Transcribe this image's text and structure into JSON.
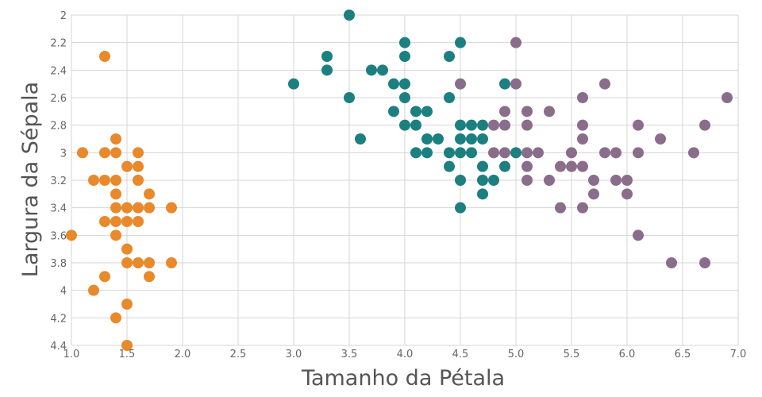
{
  "chart_data": {
    "type": "scatter",
    "xlabel": "Tamanho da Pétala",
    "ylabel": "Largura da Sépala",
    "xlim": [
      1.0,
      7.0
    ],
    "ylim": [
      2,
      4.4
    ],
    "y_reversed": true,
    "x_ticks": [
      "1.0",
      "1.5",
      "2.0",
      "2.5",
      "3.0",
      "3.5",
      "4.0",
      "4.5",
      "5.0",
      "5.5",
      "6.0",
      "6.5",
      "7.0"
    ],
    "y_ticks": [
      "2",
      "2.2",
      "2.4",
      "2.6",
      "2.8",
      "3",
      "3.2",
      "3.4",
      "3.6",
      "3.8",
      "4",
      "4.2",
      "4.4"
    ],
    "grid": true,
    "series": [
      {
        "color": "#e8892b",
        "points": [
          [
            1.3,
            2.3
          ],
          [
            1.4,
            2.9
          ],
          [
            1.1,
            3.0
          ],
          [
            1.3,
            3.0
          ],
          [
            1.4,
            3.0
          ],
          [
            1.6,
            3.0
          ],
          [
            1.5,
            3.1
          ],
          [
            1.6,
            3.1
          ],
          [
            1.2,
            3.2
          ],
          [
            1.3,
            3.2
          ],
          [
            1.4,
            3.2
          ],
          [
            1.6,
            3.2
          ],
          [
            1.4,
            3.3
          ],
          [
            1.7,
            3.3
          ],
          [
            1.4,
            3.4
          ],
          [
            1.5,
            3.4
          ],
          [
            1.6,
            3.4
          ],
          [
            1.7,
            3.4
          ],
          [
            1.9,
            3.4
          ],
          [
            1.3,
            3.5
          ],
          [
            1.4,
            3.5
          ],
          [
            1.5,
            3.5
          ],
          [
            1.6,
            3.5
          ],
          [
            1.0,
            3.6
          ],
          [
            1.4,
            3.6
          ],
          [
            1.5,
            3.7
          ],
          [
            1.5,
            3.8
          ],
          [
            1.6,
            3.8
          ],
          [
            1.7,
            3.8
          ],
          [
            1.9,
            3.8
          ],
          [
            1.3,
            3.9
          ],
          [
            1.7,
            3.9
          ],
          [
            1.2,
            4.0
          ],
          [
            1.5,
            4.1
          ],
          [
            1.4,
            4.2
          ],
          [
            1.5,
            4.4
          ]
        ]
      },
      {
        "color": "#1c7f80",
        "points": [
          [
            3.5,
            2.0
          ],
          [
            4.0,
            2.2
          ],
          [
            4.5,
            2.2
          ],
          [
            3.3,
            2.3
          ],
          [
            4.0,
            2.3
          ],
          [
            4.4,
            2.3
          ],
          [
            3.3,
            2.4
          ],
          [
            3.7,
            2.4
          ],
          [
            3.8,
            2.4
          ],
          [
            3.0,
            2.5
          ],
          [
            3.9,
            2.5
          ],
          [
            4.0,
            2.5
          ],
          [
            4.9,
            2.5
          ],
          [
            3.5,
            2.6
          ],
          [
            4.0,
            2.6
          ],
          [
            4.4,
            2.6
          ],
          [
            3.9,
            2.7
          ],
          [
            4.1,
            2.7
          ],
          [
            4.2,
            2.7
          ],
          [
            4.0,
            2.8
          ],
          [
            4.1,
            2.8
          ],
          [
            4.5,
            2.8
          ],
          [
            4.6,
            2.8
          ],
          [
            4.7,
            2.8
          ],
          [
            3.6,
            2.9
          ],
          [
            4.2,
            2.9
          ],
          [
            4.3,
            2.9
          ],
          [
            4.5,
            2.9
          ],
          [
            4.6,
            2.9
          ],
          [
            4.7,
            2.9
          ],
          [
            4.1,
            3.0
          ],
          [
            4.2,
            3.0
          ],
          [
            4.4,
            3.0
          ],
          [
            4.5,
            3.0
          ],
          [
            4.6,
            3.0
          ],
          [
            5.0,
            3.0
          ],
          [
            4.4,
            3.1
          ],
          [
            4.7,
            3.1
          ],
          [
            4.9,
            3.1
          ],
          [
            4.5,
            3.2
          ],
          [
            4.7,
            3.2
          ],
          [
            4.8,
            3.2
          ],
          [
            4.7,
            3.3
          ],
          [
            4.5,
            3.4
          ]
        ]
      },
      {
        "color": "#8a6d8b",
        "points": [
          [
            5.0,
            2.2
          ],
          [
            4.5,
            2.5
          ],
          [
            5.0,
            2.5
          ],
          [
            5.8,
            2.5
          ],
          [
            6.9,
            2.6
          ],
          [
            5.6,
            2.6
          ],
          [
            4.9,
            2.7
          ],
          [
            5.1,
            2.7
          ],
          [
            5.3,
            2.7
          ],
          [
            4.8,
            2.8
          ],
          [
            4.9,
            2.8
          ],
          [
            5.1,
            2.8
          ],
          [
            5.6,
            2.8
          ],
          [
            6.1,
            2.8
          ],
          [
            6.7,
            2.8
          ],
          [
            5.6,
            2.9
          ],
          [
            6.3,
            2.9
          ],
          [
            4.8,
            3.0
          ],
          [
            4.9,
            3.0
          ],
          [
            5.1,
            3.0
          ],
          [
            5.2,
            3.0
          ],
          [
            5.5,
            3.0
          ],
          [
            5.8,
            3.0
          ],
          [
            5.9,
            3.0
          ],
          [
            6.1,
            3.0
          ],
          [
            6.6,
            3.0
          ],
          [
            5.1,
            3.1
          ],
          [
            5.4,
            3.1
          ],
          [
            5.5,
            3.1
          ],
          [
            5.6,
            3.1
          ],
          [
            5.1,
            3.2
          ],
          [
            5.3,
            3.2
          ],
          [
            5.7,
            3.2
          ],
          [
            5.9,
            3.2
          ],
          [
            6.0,
            3.2
          ],
          [
            5.7,
            3.3
          ],
          [
            6.0,
            3.3
          ],
          [
            5.4,
            3.4
          ],
          [
            5.6,
            3.4
          ],
          [
            6.1,
            3.6
          ],
          [
            6.4,
            3.8
          ],
          [
            6.7,
            3.8
          ]
        ]
      }
    ]
  }
}
